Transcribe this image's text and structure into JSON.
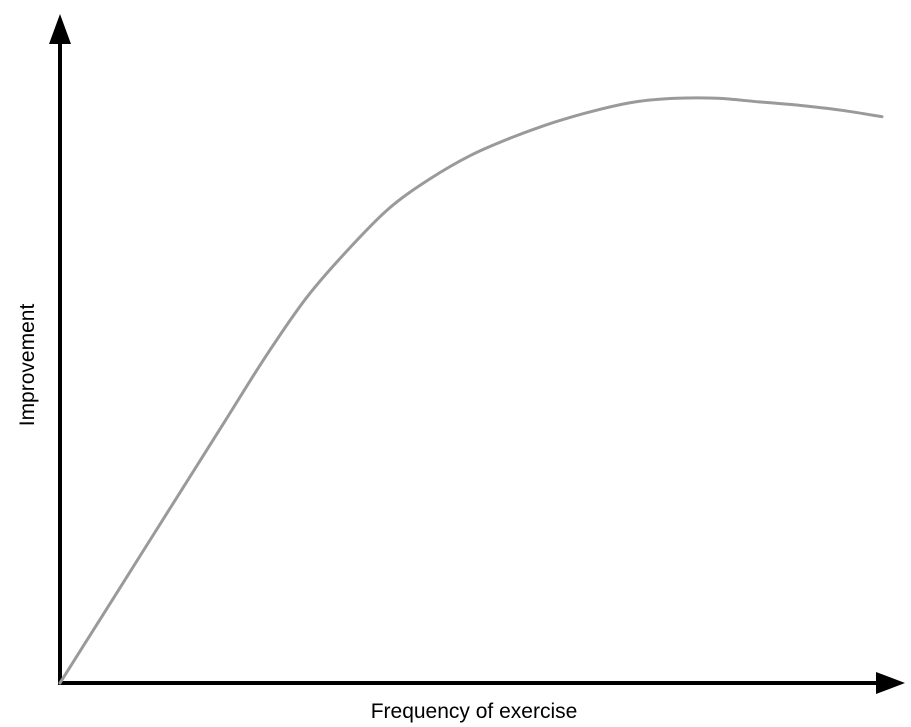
{
  "chart_data": {
    "type": "line",
    "title": "",
    "xlabel": "Frequency of exercise",
    "ylabel": "Improvement",
    "xlim": [
      0,
      100
    ],
    "ylim": [
      0,
      100
    ],
    "grid": false,
    "legend": "none",
    "tick_labels": "none",
    "series": [
      {
        "color": "#9a9a9a",
        "x": [
          0,
          5,
          10,
          15,
          20,
          25,
          30,
          35,
          40,
          45,
          50,
          55,
          60,
          65,
          70,
          75,
          80,
          85,
          90,
          95,
          100
        ],
        "y": [
          0,
          11,
          22,
          33,
          44,
          55,
          65,
          73,
          80,
          85,
          89,
          92,
          94.5,
          96.5,
          98,
          98.6,
          98.6,
          98,
          97.4,
          96.6,
          95.5
        ]
      }
    ]
  }
}
